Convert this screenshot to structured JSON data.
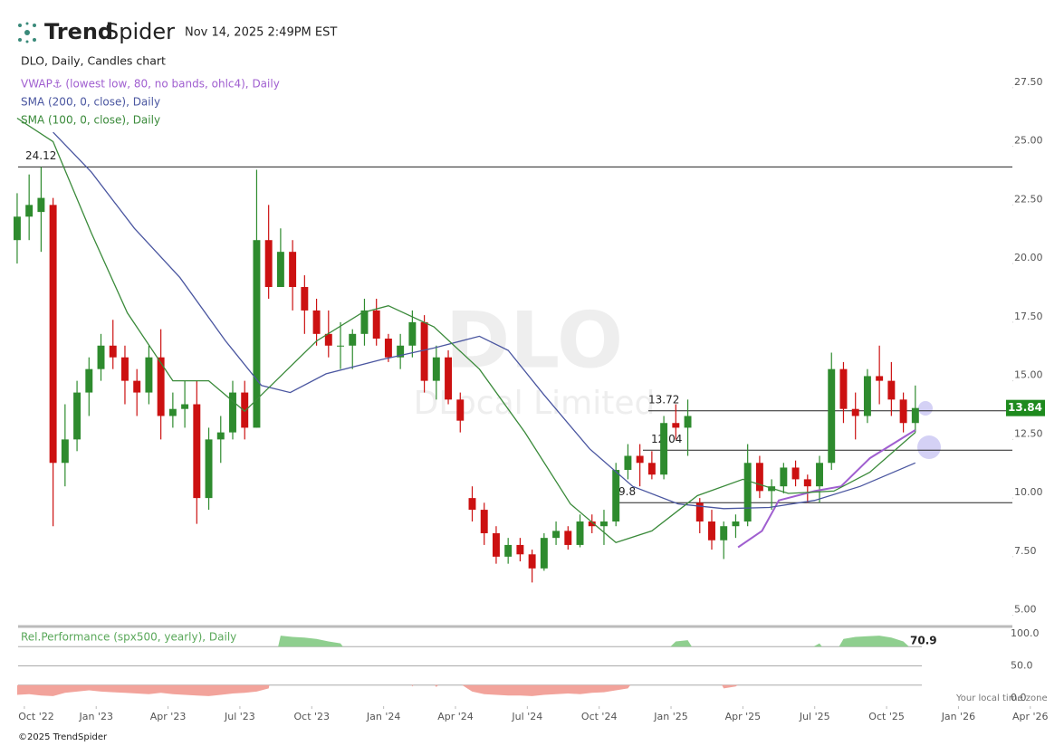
{
  "header": {
    "brand": {
      "bold": "Trend",
      "light": "Spider"
    },
    "timestamp": "Nov 14, 2025 2:49PM EST"
  },
  "footer": "©2025 TrendSpider",
  "timezone_note": "Your local time zone",
  "chart_data": [
    {
      "type": "candlestick",
      "title": "DLO, Daily, Candles chart",
      "watermark": {
        "symbol": "DLO",
        "name": "DLocal Limited"
      },
      "up_color": "#2e8b2e",
      "down_color": "#cc1111",
      "x": [
        -0.3,
        0.2,
        0.7,
        1.2,
        1.7,
        2.2,
        2.7,
        3.2,
        3.7,
        4.2,
        4.7,
        5.2,
        5.7,
        6.2,
        6.7,
        7.2,
        7.7,
        8.2,
        8.7,
        9.2,
        9.7,
        10.2,
        10.7,
        11.2,
        11.7,
        12.2,
        12.7,
        13.2,
        13.7,
        14.2,
        14.7,
        15.2,
        15.7,
        16.2,
        16.7,
        17.2,
        17.7,
        18.2,
        18.7,
        19.2,
        19.7,
        20.2,
        20.7,
        21.2,
        21.7,
        22.2,
        22.7,
        23.2,
        23.7,
        24.2,
        24.7,
        25.2,
        25.7,
        26.2,
        26.7,
        27.2,
        27.7,
        28.2,
        28.7,
        29.2,
        29.7,
        30.2,
        30.7,
        31.2,
        31.7,
        32.2,
        32.7,
        33.2,
        33.7,
        34.2,
        34.7,
        35.2,
        35.7,
        36.2,
        36.7,
        37.2
      ],
      "open": [
        21,
        22,
        22.2,
        22.5,
        11.5,
        12.5,
        14.5,
        15.5,
        16.5,
        16,
        15,
        14.5,
        16,
        13.5,
        13.8,
        14,
        10,
        12.5,
        12.8,
        14.5,
        13,
        21,
        19,
        20.5,
        19,
        18,
        17,
        16.5,
        16.5,
        17,
        18,
        16.8,
        16,
        16.5,
        17.5,
        15,
        16,
        14.2,
        10,
        9.5,
        8.5,
        7.5,
        8,
        7.6,
        7,
        8.3,
        8.6,
        8,
        9,
        8.8,
        9,
        11.2,
        11.8,
        11.5,
        11,
        13.2,
        13,
        9.8,
        9,
        8.2,
        8.8,
        9,
        11.5,
        10.3,
        10.5,
        11.3,
        10.8,
        10.5,
        11.5,
        15.5,
        13.8,
        13.5,
        15.2,
        15,
        14.2,
        13.2
      ],
      "high": [
        23,
        23.8,
        24.12,
        22.8,
        14,
        15,
        16,
        17,
        17.6,
        16.5,
        15.5,
        16.5,
        17.2,
        14.5,
        15,
        15,
        13,
        13.5,
        15,
        15,
        24,
        22.5,
        21.5,
        21,
        19.5,
        18.5,
        18,
        17.5,
        17.2,
        18.5,
        18.5,
        17,
        17,
        18,
        17.8,
        16.5,
        16.3,
        14.5,
        10.5,
        9.8,
        8.8,
        8.3,
        8.3,
        7.8,
        8.5,
        9,
        8.8,
        9.3,
        9.3,
        9.5,
        11.5,
        12.3,
        12.3,
        12,
        13.5,
        14,
        14.2,
        10,
        9.5,
        9,
        9.3,
        12.3,
        11.8,
        10.8,
        11.5,
        11.6,
        11,
        11.8,
        16.2,
        15.8,
        14.5,
        15.5,
        16.5,
        15.8,
        14.5,
        14.8
      ],
      "low": [
        20,
        21,
        20.5,
        8.8,
        10.5,
        12,
        13.5,
        15,
        15.5,
        14,
        13.5,
        14,
        12.5,
        13,
        13,
        8.9,
        9.5,
        11.5,
        12.5,
        12.5,
        13,
        18.5,
        19,
        18,
        17,
        16.5,
        16,
        15.5,
        15.5,
        16.5,
        16.5,
        15.8,
        15.5,
        16,
        14.5,
        14.2,
        14,
        12.8,
        9,
        8,
        7.2,
        7.2,
        7.3,
        6.4,
        6.9,
        8,
        7.8,
        7.9,
        8.5,
        8,
        8.8,
        10.8,
        10.5,
        10.8,
        10.8,
        12.5,
        11.8,
        8.5,
        7.8,
        7.4,
        8.3,
        8.8,
        10,
        9.5,
        10.2,
        10.5,
        9.8,
        9.8,
        11.2,
        13.2,
        12.5,
        13.2,
        14,
        13.5,
        12.8,
        12.8
      ],
      "close": [
        22,
        22.5,
        22.8,
        11.5,
        12.5,
        14.5,
        15.5,
        16.5,
        16,
        15,
        14.5,
        16,
        13.5,
        13.8,
        14,
        10,
        12.5,
        12.8,
        14.5,
        13,
        21,
        19,
        20.5,
        19,
        18,
        17,
        16.5,
        16.5,
        17,
        18,
        16.8,
        16,
        16.5,
        17.5,
        15,
        16,
        14.2,
        13.3,
        9.5,
        8.5,
        7.5,
        8,
        7.6,
        7,
        8.3,
        8.6,
        8,
        9,
        8.8,
        9,
        11.2,
        11.8,
        11.5,
        11,
        13.2,
        13,
        13.5,
        9,
        8.2,
        8.8,
        9,
        11.5,
        10.3,
        10.5,
        11.3,
        10.8,
        10.5,
        11.5,
        15.5,
        13.8,
        13.5,
        15.2,
        15,
        14.2,
        13.2,
        13.84
      ],
      "overlays": [
        {
          "name": "VWAP⚓ (lowest low, 80, no bands, ohlc4), Daily",
          "color": "#a05fd0",
          "x": [
            29.8,
            30.8,
            31.5,
            33.0,
            34.1,
            35.3,
            37.2
          ],
          "values": [
            7.9,
            8.6,
            9.9,
            10.3,
            10.5,
            11.7,
            12.9
          ]
        },
        {
          "name": "SMA (200, 0, close), Daily",
          "color": "#4a56a0",
          "x": [
            1.2,
            2.8,
            4.6,
            6.5,
            8.4,
            9.9,
            11.1,
            12.6,
            14.9,
            17.1,
            19.0,
            20.2,
            21.7,
            23.6,
            25.4,
            27.3,
            29.2,
            31.1,
            33.0,
            34.9,
            37.2
          ],
          "values": [
            25.6,
            23.9,
            21.5,
            19.4,
            16.7,
            14.8,
            14.5,
            15.3,
            15.9,
            16.4,
            16.9,
            16.3,
            14.4,
            12.1,
            10.5,
            9.75,
            9.55,
            9.6,
            9.9,
            10.5,
            11.5
          ]
        },
        {
          "name": "SMA (100, 0, close), Daily",
          "color": "#3a8a3a",
          "x": [
            -0.3,
            1.2,
            2.8,
            4.3,
            6.2,
            7.7,
            9.2,
            10.3,
            12.2,
            14.1,
            15.2,
            17.1,
            19.0,
            20.9,
            22.8,
            24.7,
            26.2,
            28.1,
            30.0,
            31.9,
            33.8,
            35.3,
            37.2
          ],
          "values": [
            26.2,
            25.2,
            21.3,
            17.9,
            15.0,
            15.0,
            13.7,
            14.8,
            16.7,
            17.9,
            18.2,
            17.3,
            15.5,
            12.8,
            9.75,
            8.1,
            8.6,
            10.1,
            10.8,
            10.2,
            10.3,
            11.1,
            12.8
          ]
        }
      ],
      "levels": [
        24.12,
        13.72,
        12.04,
        9.8
      ],
      "price_tag_color": "#1e8a1e",
      "xlim": [
        -0.26,
        42.84
      ],
      "xticks": [
        {
          "value": 0,
          "label": "Oct '22"
        },
        {
          "value": 3,
          "label": "Jan '23"
        },
        {
          "value": 6,
          "label": "Apr '23"
        },
        {
          "value": 9,
          "label": "Jul '23"
        },
        {
          "value": 12,
          "label": "Oct '23"
        },
        {
          "value": 15,
          "label": "Jan '24"
        },
        {
          "value": 18,
          "label": "Apr '24"
        },
        {
          "value": 21,
          "label": "Jul '24"
        },
        {
          "value": 24,
          "label": "Oct '24"
        },
        {
          "value": 27,
          "label": "Jan '25"
        },
        {
          "value": 30,
          "label": "Apr '25"
        },
        {
          "value": 33,
          "label": "Jul '25"
        },
        {
          "value": 36,
          "label": "Oct '25"
        },
        {
          "value": 39,
          "label": "Jan '26"
        },
        {
          "value": 42,
          "label": "Apr '26"
        }
      ],
      "ylim": [
        4.6,
        29.0
      ],
      "yticks": [
        {
          "value": 5,
          "label": "5.00"
        },
        {
          "value": 7.5,
          "label": "7.50"
        },
        {
          "value": 10,
          "label": "10.00"
        },
        {
          "value": 12.5,
          "label": "12.50"
        },
        {
          "value": 15,
          "label": "15.00"
        },
        {
          "value": 17.5,
          "label": "17.50"
        },
        {
          "value": 20,
          "label": "20.00"
        },
        {
          "value": 22.5,
          "label": "22.50"
        },
        {
          "value": 25,
          "label": "25.00"
        },
        {
          "value": 27.5,
          "label": "27.50"
        }
      ]
    },
    {
      "type": "band",
      "title": "Rel.Performance (spx500, yearly), Daily",
      "upper_color": "#8fcf8f",
      "lower_color": "#f2a39b",
      "values": [
        5,
        6,
        4,
        3,
        8,
        10,
        12,
        10,
        9,
        8,
        7,
        6,
        8,
        6,
        5,
        4,
        3,
        5,
        7,
        8,
        10,
        15,
        97,
        95,
        94,
        92,
        88,
        85,
        60,
        55,
        52,
        50,
        48,
        18,
        40,
        17,
        35,
        22,
        10,
        6,
        5,
        4,
        4,
        3,
        5,
        6,
        7,
        6,
        8,
        9,
        12,
        15,
        40,
        55,
        70,
        88,
        90,
        60,
        50,
        15,
        18,
        30,
        50,
        55,
        60,
        70,
        75,
        85,
        60,
        92,
        95,
        96,
        97,
        94,
        88,
        70.9
      ],
      "bands": [
        80,
        50,
        20
      ],
      "ylim": [
        0,
        100
      ],
      "yticks": [
        {
          "value": 100,
          "label": "100.0"
        },
        {
          "value": 50,
          "label": "50.0"
        },
        {
          "value": 0,
          "label": "0.0"
        }
      ]
    }
  ]
}
